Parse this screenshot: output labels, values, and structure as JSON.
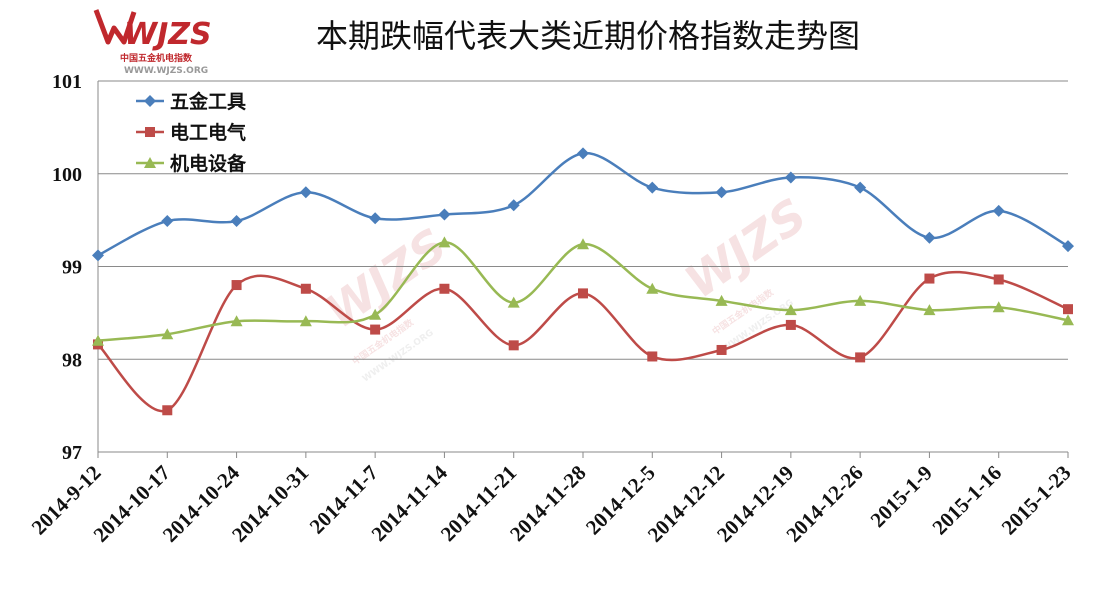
{
  "logo": {
    "brand": "WJZS",
    "line1": "中国五金机电指数",
    "line2": "WWW.WJZS.ORG",
    "color": "#c0282d"
  },
  "chart_data": {
    "type": "line",
    "title": "本期跌幅代表大类近期价格指数走势图",
    "xlabel": "",
    "ylabel": "",
    "ylim": [
      97,
      101
    ],
    "yticks": [
      "101",
      "100",
      "99",
      "98",
      "97"
    ],
    "grid": true,
    "legend_position": "top-left",
    "categories": [
      "2014-9-12",
      "2014-10-17",
      "2014-10-24",
      "2014-10-31",
      "2014-11-7",
      "2014-11-14",
      "2014-11-21",
      "2014-11-28",
      "2014-12-5",
      "2014-12-12",
      "2014-12-19",
      "2014-12-26",
      "2015-1-9",
      "2015-1-16",
      "2015-1-23"
    ],
    "series": [
      {
        "name": "五金工具",
        "color": "#4a7ebb",
        "marker": "diamond",
        "values": [
          99.12,
          99.49,
          99.49,
          99.8,
          99.52,
          99.56,
          99.66,
          100.22,
          99.85,
          99.8,
          99.96,
          99.85,
          99.31,
          99.6,
          99.22
        ]
      },
      {
        "name": "电工电气",
        "color": "#be4b48",
        "marker": "square",
        "values": [
          98.16,
          97.45,
          98.8,
          98.76,
          98.32,
          98.76,
          98.15,
          98.71,
          98.03,
          98.1,
          98.37,
          98.02,
          98.87,
          98.86,
          98.54
        ]
      },
      {
        "name": "机电设备",
        "color": "#98b954",
        "marker": "triangle",
        "values": [
          98.2,
          98.27,
          98.41,
          98.41,
          98.48,
          99.26,
          98.61,
          99.24,
          98.76,
          98.63,
          98.53,
          98.63,
          98.53,
          98.56,
          98.42
        ]
      }
    ]
  }
}
